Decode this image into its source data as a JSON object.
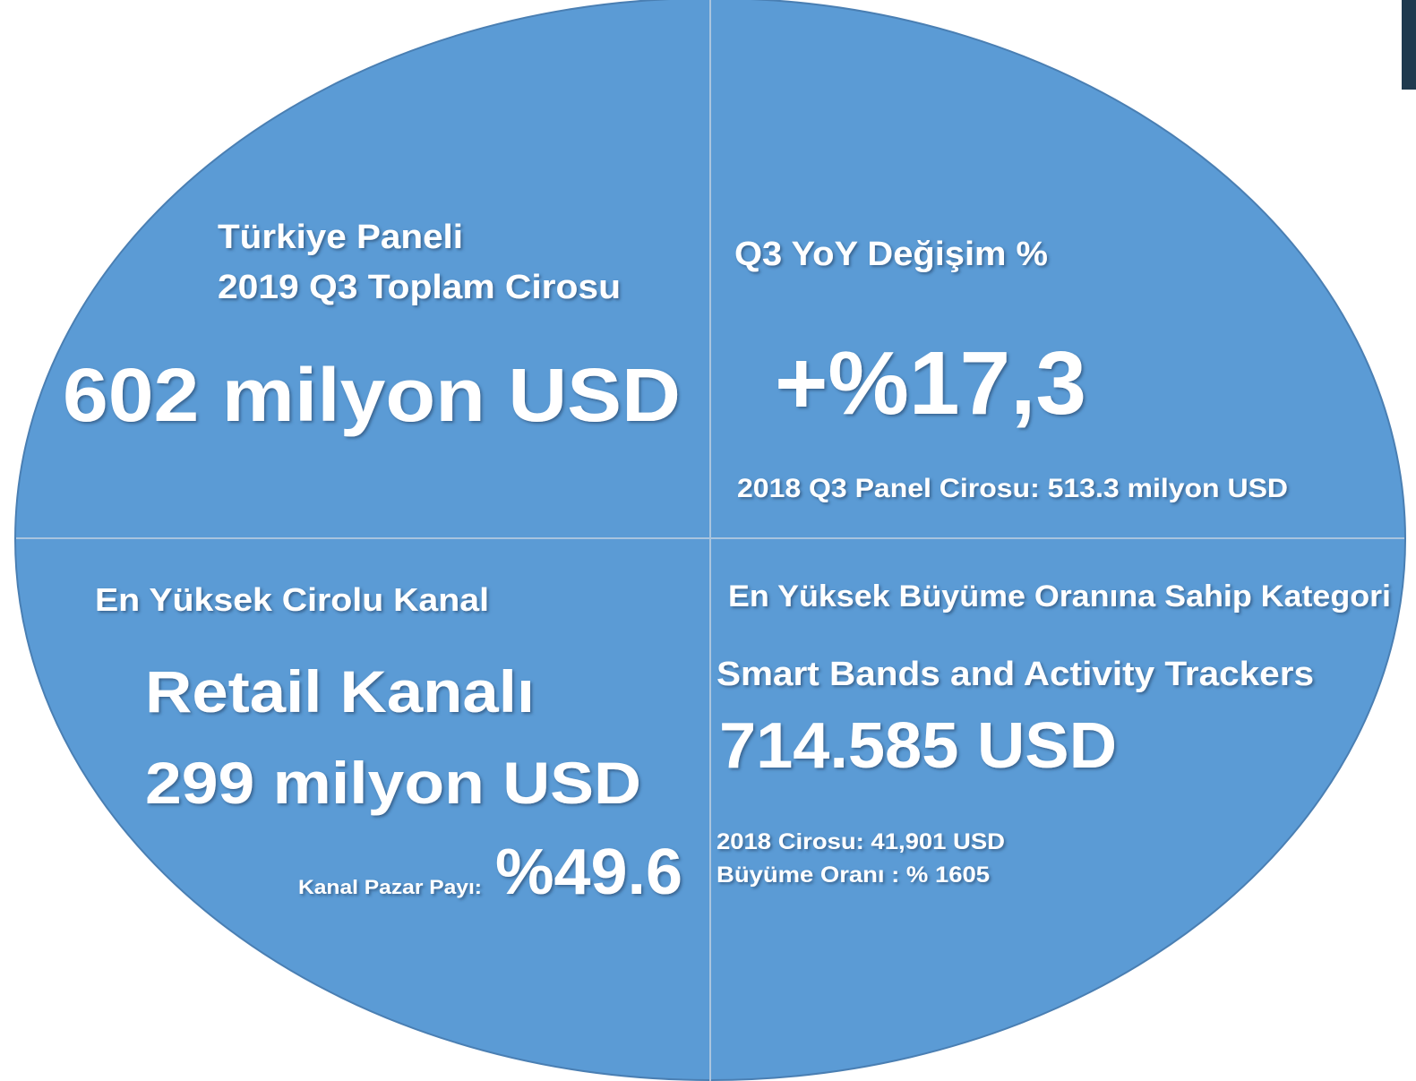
{
  "top_left": {
    "heading": [
      "Türkiye Paneli",
      "2019 Q3 Toplam Cirosu"
    ],
    "value": "602 milyon USD"
  },
  "top_right": {
    "heading": "Q3 YoY Değişim %",
    "value": "+%17,3",
    "note": "2018 Q3 Panel Cirosu: 513.3 milyon USD"
  },
  "bottom_left": {
    "heading": "En Yüksek Cirolu Kanal",
    "name": "Retail Kanalı",
    "value": "299 milyon USD",
    "share_label": "Kanal Pazar Payı:",
    "share": "%49.6"
  },
  "bottom_right": {
    "heading": "En Yüksek Büyüme Oranına Sahip Kategori",
    "name": "Smart Bands and Activity Trackers",
    "value": "714.585 USD",
    "notes": [
      "2018 Cirosu: 41,901 USD",
      "Büyüme Oranı : % 1605"
    ]
  }
}
